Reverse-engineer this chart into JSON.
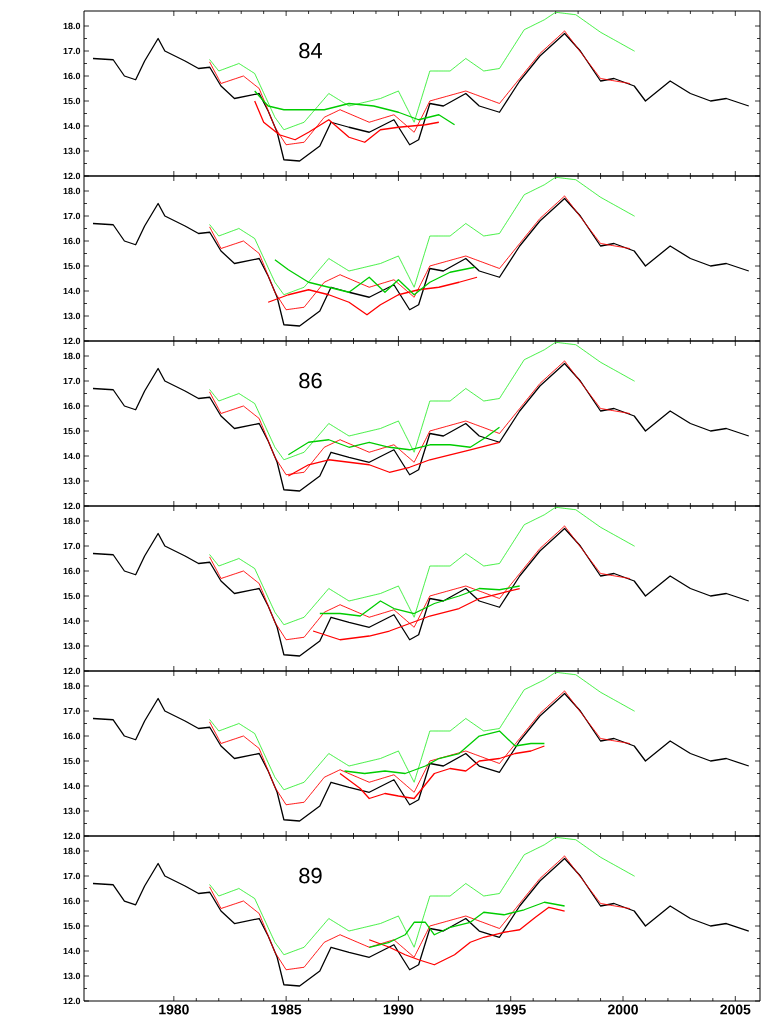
{
  "chart_data": [
    {
      "type": "line",
      "xlim": [
        1976,
        2006.1
      ],
      "ylim": [
        12,
        18.6
      ],
      "tick_labels": "y",
      "annotations": [
        "84"
      ],
      "xticks": [
        1980,
        1985,
        1990,
        1995,
        2000,
        2005
      ],
      "yticks": [
        {
          "value": 12,
          "label": "12.0"
        },
        {
          "value": 13,
          "label": "13.0"
        },
        {
          "value": 14,
          "label": "14.0"
        },
        {
          "value": 15,
          "label": "15.0"
        },
        {
          "value": 16,
          "label": "16.0"
        },
        {
          "value": 17,
          "label": "17.0"
        },
        {
          "value": 18,
          "label": "18.0"
        }
      ],
      "series": [
        {
          "color": "#000000",
          "line_style": "solid",
          "x": [
            1976.4,
            1977.3,
            1977.8,
            1978.3,
            1978.7,
            1979.3,
            1979.6,
            1980.5,
            1981.1,
            1981.6,
            1982.1,
            1982.7,
            1983.8,
            1984.2,
            1984.6,
            1984.9,
            1985.6,
            1986.5,
            1987.0,
            1987.8,
            1988.7,
            1989.8,
            1990.5,
            1990.9,
            1991.4,
            1992.0,
            1993.0,
            1993.6,
            1994.5,
            1995.4,
            1996.3,
            1997.4,
            1998.1,
            1999.0,
            1999.6,
            2000.5,
            2001.0,
            2002.1,
            2003.0,
            2003.9,
            2004.6,
            2005.6
          ],
          "values": [
            16.7,
            16.65,
            16.0,
            15.85,
            16.6,
            17.5,
            17.0,
            16.6,
            16.3,
            16.35,
            15.6,
            15.1,
            15.3,
            14.6,
            13.75,
            12.65,
            12.6,
            13.2,
            14.15,
            13.95,
            13.75,
            14.25,
            13.25,
            13.45,
            14.9,
            14.8,
            15.3,
            14.8,
            14.55,
            15.8,
            16.8,
            17.7,
            17.0,
            15.8,
            15.9,
            15.6,
            15.0,
            15.8,
            15.3,
            15.0,
            15.1,
            14.8
          ]
        },
        {
          "color": "#ff0000",
          "line_style": "dotted",
          "x": [
            1981.6,
            1982.1,
            1983.1,
            1983.8,
            1984.5,
            1985.0,
            1985.8,
            1986.7,
            1987.4,
            1988.7,
            1989.8,
            1990.7,
            1991.4,
            1993.0,
            1994.5,
            1995.4,
            1996.3,
            1997.4,
            1999.0,
            2000.3
          ],
          "values": [
            16.55,
            15.7,
            16.0,
            15.5,
            13.95,
            13.25,
            13.35,
            14.35,
            14.65,
            14.15,
            14.45,
            13.75,
            15.0,
            15.4,
            14.9,
            15.9,
            16.9,
            17.8,
            15.9,
            15.7
          ]
        },
        {
          "color": "#33ee33",
          "line_style": "dotted",
          "x": [
            1981.6,
            1982.0,
            1982.9,
            1983.6,
            1984.5,
            1984.9,
            1985.8,
            1986.9,
            1987.8,
            1989.2,
            1990.0,
            1990.7,
            1991.4,
            1992.3,
            1993.0,
            1993.8,
            1994.5,
            1995.6,
            1996.5,
            1997.0,
            1997.9,
            1999.0,
            2000.5
          ],
          "values": [
            16.65,
            16.2,
            16.5,
            16.1,
            14.35,
            13.85,
            14.15,
            15.3,
            14.8,
            15.1,
            15.4,
            14.15,
            16.2,
            16.2,
            16.7,
            16.2,
            16.3,
            17.85,
            18.25,
            18.55,
            18.45,
            17.75,
            17.0
          ]
        },
        {
          "color": "#ff0000",
          "line_style": "solid",
          "x": [
            1983.6,
            1984.0,
            1984.7,
            1985.4,
            1986.0,
            1986.9,
            1987.8,
            1988.5,
            1989.2,
            1990.0,
            1991.2,
            1991.8
          ],
          "values": [
            15.0,
            14.15,
            13.65,
            13.45,
            13.75,
            14.25,
            13.55,
            13.35,
            13.85,
            13.95,
            14.05,
            14.15
          ]
        },
        {
          "color": "#00cc00",
          "line_style": "solid",
          "x": [
            1983.6,
            1984.2,
            1984.9,
            1986.7,
            1987.8,
            1988.9,
            1990.0,
            1990.9,
            1991.8,
            1992.5
          ],
          "values": [
            15.4,
            14.8,
            14.65,
            14.65,
            14.9,
            14.8,
            14.55,
            14.25,
            14.45,
            14.05
          ]
        }
      ]
    },
    {
      "type": "line",
      "xlim": [
        1976,
        2006.1
      ],
      "ylim": [
        12,
        18.6
      ],
      "tick_labels": "y",
      "xticks": [
        1980,
        1985,
        1990,
        1995,
        2000,
        2005
      ],
      "yticks": [
        {
          "value": 12,
          "label": "12.0"
        },
        {
          "value": 13,
          "label": "13.0"
        },
        {
          "value": 14,
          "label": "14.0"
        },
        {
          "value": 15,
          "label": "15.0"
        },
        {
          "value": 16,
          "label": "16.0"
        },
        {
          "value": 17,
          "label": "17.0"
        },
        {
          "value": 18,
          "label": "18.0"
        }
      ],
      "series": [
        {
          "color": "#000000",
          "line_style": "solid",
          "x": [
            1976.4,
            1977.3,
            1977.8,
            1978.3,
            1978.7,
            1979.3,
            1979.6,
            1980.5,
            1981.1,
            1981.6,
            1982.1,
            1982.7,
            1983.8,
            1984.2,
            1984.6,
            1984.9,
            1985.6,
            1986.5,
            1987.0,
            1987.8,
            1988.7,
            1989.8,
            1990.5,
            1990.9,
            1991.4,
            1992.0,
            1993.0,
            1993.6,
            1994.5,
            1995.4,
            1996.3,
            1997.4,
            1998.1,
            1999.0,
            1999.6,
            2000.5,
            2001.0,
            2002.1,
            2003.0,
            2003.9,
            2004.6,
            2005.6
          ],
          "values": [
            16.7,
            16.65,
            16.0,
            15.85,
            16.6,
            17.5,
            17.0,
            16.6,
            16.3,
            16.35,
            15.6,
            15.1,
            15.3,
            14.6,
            13.75,
            12.65,
            12.6,
            13.2,
            14.15,
            13.95,
            13.75,
            14.25,
            13.25,
            13.45,
            14.9,
            14.8,
            15.3,
            14.8,
            14.55,
            15.8,
            16.8,
            17.7,
            17.0,
            15.8,
            15.9,
            15.6,
            15.0,
            15.8,
            15.3,
            15.0,
            15.1,
            14.8
          ]
        },
        {
          "color": "#ff0000",
          "line_style": "dotted",
          "x": [
            1981.6,
            1982.1,
            1983.1,
            1983.8,
            1984.5,
            1985.0,
            1985.8,
            1986.7,
            1987.4,
            1988.7,
            1989.8,
            1990.7,
            1991.4,
            1993.0,
            1994.5,
            1995.4,
            1996.3,
            1997.4,
            1999.0,
            2000.3
          ],
          "values": [
            16.55,
            15.7,
            16.0,
            15.5,
            13.95,
            13.25,
            13.35,
            14.35,
            14.65,
            14.15,
            14.45,
            13.75,
            15.0,
            15.4,
            14.9,
            15.9,
            16.9,
            17.8,
            15.9,
            15.7
          ]
        },
        {
          "color": "#33ee33",
          "line_style": "dotted",
          "x": [
            1981.6,
            1982.0,
            1982.9,
            1983.6,
            1984.5,
            1984.9,
            1985.8,
            1986.9,
            1987.8,
            1989.2,
            1990.0,
            1990.7,
            1991.4,
            1992.3,
            1993.0,
            1993.8,
            1994.5,
            1995.6,
            1996.5,
            1997.0,
            1997.9,
            1999.0,
            2000.5
          ],
          "values": [
            16.65,
            16.2,
            16.5,
            16.1,
            14.35,
            13.85,
            14.15,
            15.3,
            14.8,
            15.1,
            15.4,
            14.15,
            16.2,
            16.2,
            16.7,
            16.2,
            16.3,
            17.85,
            18.25,
            18.55,
            18.45,
            17.75,
            17.0
          ]
        },
        {
          "color": "#ff0000",
          "line_style": "solid",
          "x": [
            1984.2,
            1985.1,
            1986.0,
            1986.9,
            1987.8,
            1988.6,
            1989.2,
            1990.0,
            1990.9,
            1991.8,
            1992.7,
            1993.5
          ],
          "values": [
            13.55,
            13.85,
            14.05,
            13.85,
            13.55,
            13.05,
            13.45,
            13.85,
            14.05,
            14.15,
            14.35,
            14.55
          ]
        },
        {
          "color": "#00cc00",
          "line_style": "solid",
          "x": [
            1984.5,
            1985.1,
            1986.0,
            1986.9,
            1987.8,
            1988.7,
            1989.4,
            1990.0,
            1990.7,
            1991.4,
            1992.3,
            1993.4
          ],
          "values": [
            15.25,
            14.85,
            14.35,
            14.15,
            13.95,
            14.55,
            13.95,
            14.45,
            13.85,
            14.35,
            14.75,
            14.95
          ]
        }
      ]
    },
    {
      "type": "line",
      "xlim": [
        1976,
        2006.1
      ],
      "ylim": [
        12,
        18.6
      ],
      "tick_labels": "y",
      "annotations": [
        "86"
      ],
      "xticks": [
        1980,
        1985,
        1990,
        1995,
        2000,
        2005
      ],
      "yticks": [
        {
          "value": 12,
          "label": "12.0"
        },
        {
          "value": 13,
          "label": "13.0"
        },
        {
          "value": 14,
          "label": "14.0"
        },
        {
          "value": 15,
          "label": "15.0"
        },
        {
          "value": 16,
          "label": "16.0"
        },
        {
          "value": 17,
          "label": "17.0"
        },
        {
          "value": 18,
          "label": "18.0"
        }
      ],
      "series": [
        {
          "color": "#000000",
          "line_style": "solid",
          "x": [
            1976.4,
            1977.3,
            1977.8,
            1978.3,
            1978.7,
            1979.3,
            1979.6,
            1980.5,
            1981.1,
            1981.6,
            1982.1,
            1982.7,
            1983.8,
            1984.2,
            1984.6,
            1984.9,
            1985.6,
            1986.5,
            1987.0,
            1987.8,
            1988.7,
            1989.8,
            1990.5,
            1990.9,
            1991.4,
            1992.0,
            1993.0,
            1993.6,
            1994.5,
            1995.4,
            1996.3,
            1997.4,
            1998.1,
            1999.0,
            1999.6,
            2000.5,
            2001.0,
            2002.1,
            2003.0,
            2003.9,
            2004.6,
            2005.6
          ],
          "values": [
            16.7,
            16.65,
            16.0,
            15.85,
            16.6,
            17.5,
            17.0,
            16.6,
            16.3,
            16.35,
            15.6,
            15.1,
            15.3,
            14.6,
            13.75,
            12.65,
            12.6,
            13.2,
            14.15,
            13.95,
            13.75,
            14.25,
            13.25,
            13.45,
            14.9,
            14.8,
            15.3,
            14.8,
            14.55,
            15.8,
            16.8,
            17.7,
            17.0,
            15.8,
            15.9,
            15.6,
            15.0,
            15.8,
            15.3,
            15.0,
            15.1,
            14.8
          ]
        },
        {
          "color": "#ff0000",
          "line_style": "dotted",
          "x": [
            1981.6,
            1982.1,
            1983.1,
            1983.8,
            1984.5,
            1985.0,
            1985.8,
            1986.7,
            1987.4,
            1988.7,
            1989.8,
            1990.7,
            1991.4,
            1993.0,
            1994.5,
            1995.4,
            1996.3,
            1997.4,
            1999.0,
            2000.3
          ],
          "values": [
            16.55,
            15.7,
            16.0,
            15.5,
            13.95,
            13.25,
            13.35,
            14.35,
            14.65,
            14.15,
            14.45,
            13.75,
            15.0,
            15.4,
            14.9,
            15.9,
            16.9,
            17.8,
            15.9,
            15.7
          ]
        },
        {
          "color": "#33ee33",
          "line_style": "dotted",
          "x": [
            1981.6,
            1982.0,
            1982.9,
            1983.6,
            1984.5,
            1984.9,
            1985.8,
            1986.9,
            1987.8,
            1989.2,
            1990.0,
            1990.7,
            1991.4,
            1992.3,
            1993.0,
            1993.8,
            1994.5,
            1995.6,
            1996.5,
            1997.0,
            1997.9,
            1999.0,
            2000.5
          ],
          "values": [
            16.65,
            16.2,
            16.5,
            16.1,
            14.35,
            13.85,
            14.15,
            15.3,
            14.8,
            15.1,
            15.4,
            14.15,
            16.2,
            16.2,
            16.7,
            16.2,
            16.3,
            17.85,
            18.25,
            18.55,
            18.45,
            17.75,
            17.0
          ]
        },
        {
          "color": "#ff0000",
          "line_style": "solid",
          "x": [
            1985.1,
            1986.0,
            1986.9,
            1987.8,
            1988.7,
            1989.6,
            1990.5,
            1991.4,
            1992.3,
            1993.2,
            1994.5
          ],
          "values": [
            13.2,
            13.65,
            13.85,
            13.75,
            13.65,
            13.35,
            13.55,
            13.85,
            14.05,
            14.25,
            14.55
          ]
        },
        {
          "color": "#00cc00",
          "line_style": "solid",
          "x": [
            1985.1,
            1986.0,
            1986.9,
            1987.8,
            1988.7,
            1989.6,
            1990.5,
            1991.4,
            1992.3,
            1993.2,
            1993.9,
            1994.5
          ],
          "values": [
            14.05,
            14.55,
            14.65,
            14.35,
            14.55,
            14.35,
            14.25,
            14.45,
            14.45,
            14.35,
            14.75,
            15.15
          ]
        }
      ]
    },
    {
      "type": "line",
      "xlim": [
        1976,
        2006.1
      ],
      "ylim": [
        12,
        18.6
      ],
      "tick_labels": "y",
      "xticks": [
        1980,
        1985,
        1990,
        1995,
        2000,
        2005
      ],
      "yticks": [
        {
          "value": 12,
          "label": "12.0"
        },
        {
          "value": 13,
          "label": "13.0"
        },
        {
          "value": 14,
          "label": "14.0"
        },
        {
          "value": 15,
          "label": "15.0"
        },
        {
          "value": 16,
          "label": "16.0"
        },
        {
          "value": 17,
          "label": "17.0"
        },
        {
          "value": 18,
          "label": "18.0"
        }
      ],
      "series": [
        {
          "color": "#000000",
          "line_style": "solid",
          "x": [
            1976.4,
            1977.3,
            1977.8,
            1978.3,
            1978.7,
            1979.3,
            1979.6,
            1980.5,
            1981.1,
            1981.6,
            1982.1,
            1982.7,
            1983.8,
            1984.2,
            1984.6,
            1984.9,
            1985.6,
            1986.5,
            1987.0,
            1987.8,
            1988.7,
            1989.8,
            1990.5,
            1990.9,
            1991.4,
            1992.0,
            1993.0,
            1993.6,
            1994.5,
            1995.4,
            1996.3,
            1997.4,
            1998.1,
            1999.0,
            1999.6,
            2000.5,
            2001.0,
            2002.1,
            2003.0,
            2003.9,
            2004.6,
            2005.6
          ],
          "values": [
            16.7,
            16.65,
            16.0,
            15.85,
            16.6,
            17.5,
            17.0,
            16.6,
            16.3,
            16.35,
            15.6,
            15.1,
            15.3,
            14.6,
            13.75,
            12.65,
            12.6,
            13.2,
            14.15,
            13.95,
            13.75,
            14.25,
            13.25,
            13.45,
            14.9,
            14.8,
            15.3,
            14.8,
            14.55,
            15.8,
            16.8,
            17.7,
            17.0,
            15.8,
            15.9,
            15.6,
            15.0,
            15.8,
            15.3,
            15.0,
            15.1,
            14.8
          ]
        },
        {
          "color": "#ff0000",
          "line_style": "dotted",
          "x": [
            1981.6,
            1982.1,
            1983.1,
            1983.8,
            1984.5,
            1985.0,
            1985.8,
            1986.7,
            1987.4,
            1988.7,
            1989.8,
            1990.7,
            1991.4,
            1993.0,
            1994.5,
            1995.4,
            1996.3,
            1997.4,
            1999.0,
            2000.3
          ],
          "values": [
            16.55,
            15.7,
            16.0,
            15.5,
            13.95,
            13.25,
            13.35,
            14.35,
            14.65,
            14.15,
            14.45,
            13.75,
            15.0,
            15.4,
            14.9,
            15.9,
            16.9,
            17.8,
            15.9,
            15.7
          ]
        },
        {
          "color": "#33ee33",
          "line_style": "dotted",
          "x": [
            1981.6,
            1982.0,
            1982.9,
            1983.6,
            1984.5,
            1984.9,
            1985.8,
            1986.9,
            1987.8,
            1989.2,
            1990.0,
            1990.7,
            1991.4,
            1992.3,
            1993.0,
            1993.8,
            1994.5,
            1995.6,
            1996.5,
            1997.0,
            1997.9,
            1999.0,
            2000.5
          ],
          "values": [
            16.65,
            16.2,
            16.5,
            16.1,
            14.35,
            13.85,
            14.15,
            15.3,
            14.8,
            15.1,
            15.4,
            14.15,
            16.2,
            16.2,
            16.7,
            16.2,
            16.3,
            17.85,
            18.25,
            18.55,
            18.45,
            17.75,
            17.0
          ]
        },
        {
          "color": "#ff0000",
          "line_style": "solid",
          "x": [
            1986.2,
            1987.4,
            1988.7,
            1989.6,
            1990.5,
            1991.4,
            1992.7,
            1993.6,
            1994.5,
            1995.4
          ],
          "values": [
            13.6,
            13.25,
            13.4,
            13.6,
            13.9,
            14.2,
            14.5,
            14.9,
            15.1,
            15.3
          ]
        },
        {
          "color": "#00cc00",
          "line_style": "solid",
          "x": [
            1986.5,
            1987.4,
            1988.3,
            1989.2,
            1989.8,
            1990.7,
            1991.6,
            1992.7,
            1993.6,
            1994.5,
            1995.4
          ],
          "values": [
            14.3,
            14.3,
            14.2,
            14.8,
            14.5,
            14.3,
            14.7,
            15.0,
            15.3,
            15.25,
            15.4
          ]
        }
      ]
    },
    {
      "type": "line",
      "xlim": [
        1976,
        2006.1
      ],
      "ylim": [
        12,
        18.6
      ],
      "tick_labels": "y",
      "xticks": [
        1980,
        1985,
        1990,
        1995,
        2000,
        2005
      ],
      "yticks": [
        {
          "value": 12,
          "label": "12.0"
        },
        {
          "value": 13,
          "label": "13.0"
        },
        {
          "value": 14,
          "label": "14.0"
        },
        {
          "value": 15,
          "label": "15.0"
        },
        {
          "value": 16,
          "label": "16.0"
        },
        {
          "value": 17,
          "label": "17.0"
        },
        {
          "value": 18,
          "label": "18.0"
        }
      ],
      "series": [
        {
          "color": "#000000",
          "line_style": "solid",
          "x": [
            1976.4,
            1977.3,
            1977.8,
            1978.3,
            1978.7,
            1979.3,
            1979.6,
            1980.5,
            1981.1,
            1981.6,
            1982.1,
            1982.7,
            1983.8,
            1984.2,
            1984.6,
            1984.9,
            1985.6,
            1986.5,
            1987.0,
            1987.8,
            1988.7,
            1989.8,
            1990.5,
            1990.9,
            1991.4,
            1992.0,
            1993.0,
            1993.6,
            1994.5,
            1995.4,
            1996.3,
            1997.4,
            1998.1,
            1999.0,
            1999.6,
            2000.5,
            2001.0,
            2002.1,
            2003.0,
            2003.9,
            2004.6,
            2005.6
          ],
          "values": [
            16.7,
            16.65,
            16.0,
            15.85,
            16.6,
            17.5,
            17.0,
            16.6,
            16.3,
            16.35,
            15.6,
            15.1,
            15.3,
            14.6,
            13.75,
            12.65,
            12.6,
            13.2,
            14.15,
            13.95,
            13.75,
            14.25,
            13.25,
            13.45,
            14.9,
            14.8,
            15.3,
            14.8,
            14.55,
            15.8,
            16.8,
            17.7,
            17.0,
            15.8,
            15.9,
            15.6,
            15.0,
            15.8,
            15.3,
            15.0,
            15.1,
            14.8
          ]
        },
        {
          "color": "#ff0000",
          "line_style": "dotted",
          "x": [
            1981.6,
            1982.1,
            1983.1,
            1983.8,
            1984.5,
            1985.0,
            1985.8,
            1986.7,
            1987.4,
            1988.7,
            1989.8,
            1990.7,
            1991.4,
            1993.0,
            1994.5,
            1995.4,
            1996.3,
            1997.4,
            1999.0,
            2000.3
          ],
          "values": [
            16.55,
            15.7,
            16.0,
            15.5,
            13.95,
            13.25,
            13.35,
            14.35,
            14.65,
            14.15,
            14.45,
            13.75,
            15.0,
            15.4,
            14.9,
            15.9,
            16.9,
            17.8,
            15.9,
            15.7
          ]
        },
        {
          "color": "#33ee33",
          "line_style": "dotted",
          "x": [
            1981.6,
            1982.0,
            1982.9,
            1983.6,
            1984.5,
            1984.9,
            1985.8,
            1986.9,
            1987.8,
            1989.2,
            1990.0,
            1990.7,
            1991.4,
            1992.3,
            1993.0,
            1993.8,
            1994.5,
            1995.6,
            1996.5,
            1997.0,
            1997.9,
            1999.0,
            2000.5
          ],
          "values": [
            16.65,
            16.2,
            16.5,
            16.1,
            14.35,
            13.85,
            14.15,
            15.3,
            14.8,
            15.1,
            15.4,
            14.15,
            16.2,
            16.2,
            16.7,
            16.2,
            16.3,
            17.85,
            18.25,
            18.55,
            18.45,
            17.75,
            17.0
          ]
        },
        {
          "color": "#ff0000",
          "line_style": "solid",
          "x": [
            1987.4,
            1988.3,
            1988.7,
            1989.4,
            1990.0,
            1990.7,
            1991.6,
            1992.3,
            1993.0,
            1993.6,
            1994.5,
            1995.2,
            1995.9,
            1996.5
          ],
          "values": [
            14.5,
            13.9,
            13.5,
            13.7,
            13.6,
            13.5,
            14.5,
            14.7,
            14.6,
            15.0,
            15.1,
            15.3,
            15.4,
            15.6
          ]
        },
        {
          "color": "#00cc00",
          "line_style": "solid",
          "x": [
            1987.6,
            1988.5,
            1989.4,
            1990.3,
            1991.2,
            1991.8,
            1992.7,
            1993.6,
            1994.5,
            1995.2,
            1995.9,
            1996.5
          ],
          "values": [
            14.6,
            14.5,
            14.6,
            14.5,
            14.8,
            15.1,
            15.3,
            16.0,
            16.2,
            15.6,
            15.7,
            15.7
          ]
        }
      ]
    },
    {
      "type": "line",
      "xlim": [
        1976,
        2006.1
      ],
      "ylim": [
        12,
        18.6
      ],
      "annotations": [
        "89"
      ],
      "xticks": [
        1980,
        1985,
        1990,
        1995,
        2000,
        2005
      ],
      "yticks": [
        {
          "value": 12,
          "label": "12.0"
        },
        {
          "value": 13,
          "label": "13.0"
        },
        {
          "value": 14,
          "label": "14.0"
        },
        {
          "value": 15,
          "label": "15.0"
        },
        {
          "value": 16,
          "label": "16.0"
        },
        {
          "value": 17,
          "label": "17.0"
        },
        {
          "value": 18,
          "label": "18.0"
        }
      ],
      "series": [
        {
          "color": "#000000",
          "line_style": "solid",
          "x": [
            1976.4,
            1977.3,
            1977.8,
            1978.3,
            1978.7,
            1979.3,
            1979.6,
            1980.5,
            1981.1,
            1981.6,
            1982.1,
            1982.7,
            1983.8,
            1984.2,
            1984.6,
            1984.9,
            1985.6,
            1986.5,
            1987.0,
            1987.8,
            1988.7,
            1989.8,
            1990.5,
            1990.9,
            1991.4,
            1992.0,
            1993.0,
            1993.6,
            1994.5,
            1995.4,
            1996.3,
            1997.4,
            1998.1,
            1999.0,
            1999.6,
            2000.5,
            2001.0,
            2002.1,
            2003.0,
            2003.9,
            2004.6,
            2005.6
          ],
          "values": [
            16.7,
            16.65,
            16.0,
            15.85,
            16.6,
            17.5,
            17.0,
            16.6,
            16.3,
            16.35,
            15.6,
            15.1,
            15.3,
            14.6,
            13.75,
            12.65,
            12.6,
            13.2,
            14.15,
            13.95,
            13.75,
            14.25,
            13.25,
            13.45,
            14.9,
            14.8,
            15.3,
            14.8,
            14.55,
            15.8,
            16.8,
            17.7,
            17.0,
            15.8,
            15.9,
            15.6,
            15.0,
            15.8,
            15.3,
            15.0,
            15.1,
            14.8
          ]
        },
        {
          "color": "#ff0000",
          "line_style": "dotted",
          "x": [
            1981.6,
            1982.1,
            1983.1,
            1983.8,
            1984.5,
            1985.0,
            1985.8,
            1986.7,
            1987.4,
            1988.7,
            1989.8,
            1990.7,
            1991.4,
            1993.0,
            1994.5,
            1995.4,
            1996.3,
            1997.4,
            1999.0,
            2000.3
          ],
          "values": [
            16.55,
            15.7,
            16.0,
            15.5,
            13.95,
            13.25,
            13.35,
            14.35,
            14.65,
            14.15,
            14.45,
            13.75,
            15.0,
            15.4,
            14.9,
            15.9,
            16.9,
            17.8,
            15.9,
            15.7
          ]
        },
        {
          "color": "#33ee33",
          "line_style": "dotted",
          "x": [
            1981.6,
            1982.0,
            1982.9,
            1983.6,
            1984.5,
            1984.9,
            1985.8,
            1986.9,
            1987.8,
            1989.2,
            1990.0,
            1990.7,
            1991.4,
            1992.3,
            1993.0,
            1993.8,
            1994.5,
            1995.6,
            1996.5,
            1997.0,
            1997.9,
            1999.0,
            2000.5
          ],
          "values": [
            16.65,
            16.2,
            16.5,
            16.1,
            14.35,
            13.85,
            14.15,
            15.3,
            14.8,
            15.1,
            15.4,
            14.15,
            16.2,
            16.2,
            16.7,
            16.2,
            16.3,
            17.85,
            18.25,
            18.55,
            18.45,
            17.75,
            17.0
          ]
        },
        {
          "color": "#ff0000",
          "line_style": "solid",
          "x": [
            1988.7,
            1989.6,
            1990.3,
            1990.9,
            1991.6,
            1992.5,
            1993.2,
            1993.8,
            1994.7,
            1995.4,
            1996.1,
            1996.7,
            1997.4
          ],
          "values": [
            14.45,
            14.15,
            13.85,
            13.65,
            13.45,
            13.85,
            14.35,
            14.55,
            14.75,
            14.85,
            15.35,
            15.75,
            15.6
          ]
        },
        {
          "color": "#00cc00",
          "line_style": "solid",
          "x": [
            1988.7,
            1989.6,
            1990.3,
            1990.7,
            1991.2,
            1991.6,
            1992.3,
            1993.2,
            1993.8,
            1994.7,
            1995.6,
            1996.5,
            1997.4
          ],
          "values": [
            14.15,
            14.35,
            14.65,
            15.15,
            15.15,
            14.65,
            14.95,
            15.15,
            15.55,
            15.45,
            15.65,
            15.95,
            15.8
          ]
        }
      ]
    }
  ]
}
